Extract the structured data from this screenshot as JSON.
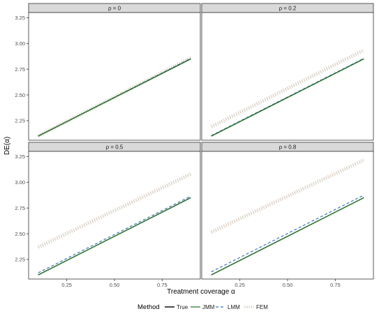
{
  "chart_data": {
    "type": "line",
    "xlabel": "Treatment coverage α",
    "ylabel": "DE(α)",
    "xlim": [
      0.05,
      0.95
    ],
    "ylim": [
      2.06,
      3.3
    ],
    "xticks": [
      0.25,
      0.5,
      0.75
    ],
    "xtick_labels": [
      "0.25",
      "0.50",
      "0.75"
    ],
    "yticks": [
      2.25,
      2.5,
      2.75,
      3.0,
      3.25
    ],
    "ytick_labels": [
      "2.25",
      "2.50",
      "2.75",
      "3.00",
      "3.25"
    ],
    "grid": false,
    "legend": {
      "title": "Method",
      "position": "bottom",
      "entries": [
        {
          "label": "True",
          "color": "#000000",
          "style": "solid"
        },
        {
          "label": "JMM",
          "color": "#2e7d32",
          "style": "solid"
        },
        {
          "label": "LMM",
          "color": "#3a78b8",
          "style": "dashed"
        },
        {
          "label": "FEM",
          "color": "#d9cfc4",
          "style": "dotted"
        }
      ]
    },
    "panels": [
      {
        "title": "ρ = 0",
        "series": [
          {
            "name": "True",
            "x": [
              0.1,
              0.9
            ],
            "y": [
              2.1,
              2.85
            ]
          },
          {
            "name": "JMM",
            "x": [
              0.1,
              0.9
            ],
            "y": [
              2.1,
              2.85
            ]
          },
          {
            "name": "LMM",
            "x": [
              0.1,
              0.9
            ],
            "y": [
              2.1,
              2.855
            ]
          },
          {
            "name": "FEM",
            "x": [
              0.1,
              0.9
            ],
            "y": [
              2.1,
              2.86
            ]
          }
        ]
      },
      {
        "title": "ρ = 0.2",
        "series": [
          {
            "name": "True",
            "x": [
              0.1,
              0.9
            ],
            "y": [
              2.1,
              2.85
            ]
          },
          {
            "name": "JMM",
            "x": [
              0.1,
              0.9
            ],
            "y": [
              2.1,
              2.85
            ]
          },
          {
            "name": "LMM",
            "x": [
              0.1,
              0.9
            ],
            "y": [
              2.105,
              2.855
            ]
          },
          {
            "name": "FEM",
            "x": [
              0.1,
              0.9
            ],
            "y": [
              2.19,
              2.935
            ]
          }
        ]
      },
      {
        "title": "ρ = 0.5",
        "series": [
          {
            "name": "True",
            "x": [
              0.1,
              0.9
            ],
            "y": [
              2.1,
              2.85
            ]
          },
          {
            "name": "JMM",
            "x": [
              0.1,
              0.9
            ],
            "y": [
              2.1,
              2.85
            ]
          },
          {
            "name": "LMM",
            "x": [
              0.1,
              0.9
            ],
            "y": [
              2.12,
              2.865
            ]
          },
          {
            "name": "FEM",
            "x": [
              0.1,
              0.9
            ],
            "y": [
              2.37,
              3.08
            ]
          }
        ]
      },
      {
        "title": "ρ = 0.8",
        "series": [
          {
            "name": "True",
            "x": [
              0.1,
              0.9
            ],
            "y": [
              2.1,
              2.85
            ]
          },
          {
            "name": "JMM",
            "x": [
              0.1,
              0.9
            ],
            "y": [
              2.1,
              2.85
            ]
          },
          {
            "name": "LMM",
            "x": [
              0.1,
              0.9
            ],
            "y": [
              2.13,
              2.875
            ]
          },
          {
            "name": "FEM",
            "x": [
              0.1,
              0.9
            ],
            "y": [
              2.515,
              3.215
            ]
          }
        ]
      }
    ]
  }
}
